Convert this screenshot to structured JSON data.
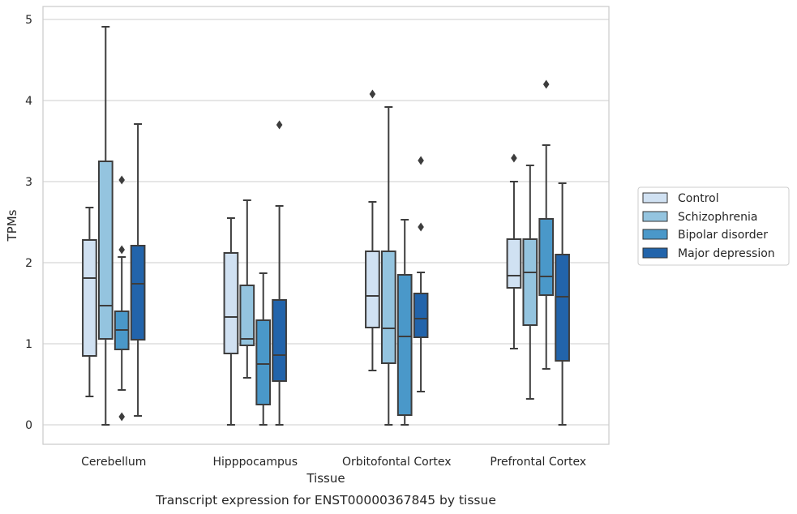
{
  "chart_data": {
    "type": "box",
    "title": "Transcript expression for ENST00000367845 by tissue",
    "xlabel": "Tissue",
    "ylabel": "TPMs",
    "categories": [
      "Cerebellum",
      "Hipppocampus",
      "Orbitofontal Cortex",
      "Prefrontal Cortex"
    ],
    "ylim": [
      -0.24,
      5.16
    ],
    "yticks": [
      0,
      1,
      2,
      3,
      4,
      5
    ],
    "grid": true,
    "legend_position": "right",
    "series": [
      {
        "name": "Control",
        "color": "#d0e1f2",
        "boxes": [
          {
            "whislo": 0.35,
            "q1": 0.85,
            "med": 1.81,
            "q3": 2.28,
            "whishi": 2.68,
            "fliers": []
          },
          {
            "whislo": 0.0,
            "q1": 0.88,
            "med": 1.33,
            "q3": 2.12,
            "whishi": 2.55,
            "fliers": []
          },
          {
            "whislo": 0.67,
            "q1": 1.2,
            "med": 1.59,
            "q3": 2.14,
            "whishi": 2.75,
            "fliers": [
              4.08
            ]
          },
          {
            "whislo": 0.94,
            "q1": 1.69,
            "med": 1.84,
            "q3": 2.29,
            "whishi": 3.0,
            "fliers": [
              3.29
            ]
          }
        ]
      },
      {
        "name": "Schizophrenia",
        "color": "#94c4df",
        "boxes": [
          {
            "whislo": 0.0,
            "q1": 1.06,
            "med": 1.47,
            "q3": 3.25,
            "whishi": 4.91,
            "fliers": []
          },
          {
            "whislo": 0.58,
            "q1": 0.98,
            "med": 1.06,
            "q3": 1.72,
            "whishi": 2.77,
            "fliers": []
          },
          {
            "whislo": 0.0,
            "q1": 0.76,
            "med": 1.19,
            "q3": 2.14,
            "whishi": 3.92,
            "fliers": []
          },
          {
            "whislo": 0.32,
            "q1": 1.23,
            "med": 1.88,
            "q3": 2.29,
            "whishi": 3.2,
            "fliers": []
          }
        ]
      },
      {
        "name": "Bipolar disorder",
        "color": "#4a98c9",
        "boxes": [
          {
            "whislo": 0.43,
            "q1": 0.93,
            "med": 1.17,
            "q3": 1.4,
            "whishi": 2.07,
            "fliers": [
              0.1,
              2.16,
              3.02
            ]
          },
          {
            "whislo": 0.0,
            "q1": 0.25,
            "med": 0.75,
            "q3": 1.29,
            "whishi": 1.87,
            "fliers": []
          },
          {
            "whislo": 0.0,
            "q1": 0.12,
            "med": 1.09,
            "q3": 1.85,
            "whishi": 2.53,
            "fliers": []
          },
          {
            "whislo": 0.69,
            "q1": 1.6,
            "med": 1.83,
            "q3": 2.54,
            "whishi": 3.45,
            "fliers": [
              4.2
            ]
          }
        ]
      },
      {
        "name": "Major depression",
        "color": "#2264ab",
        "boxes": [
          {
            "whislo": 0.11,
            "q1": 1.05,
            "med": 1.74,
            "q3": 2.21,
            "whishi": 3.71,
            "fliers": []
          },
          {
            "whislo": 0.0,
            "q1": 0.54,
            "med": 0.86,
            "q3": 1.54,
            "whishi": 2.7,
            "fliers": [
              3.7
            ]
          },
          {
            "whislo": 0.41,
            "q1": 1.08,
            "med": 1.31,
            "q3": 1.62,
            "whishi": 1.88,
            "fliers": [
              2.44,
              3.26
            ]
          },
          {
            "whislo": 0.0,
            "q1": 0.79,
            "med": 1.58,
            "q3": 2.1,
            "whishi": 2.98,
            "fliers": []
          }
        ]
      }
    ]
  }
}
